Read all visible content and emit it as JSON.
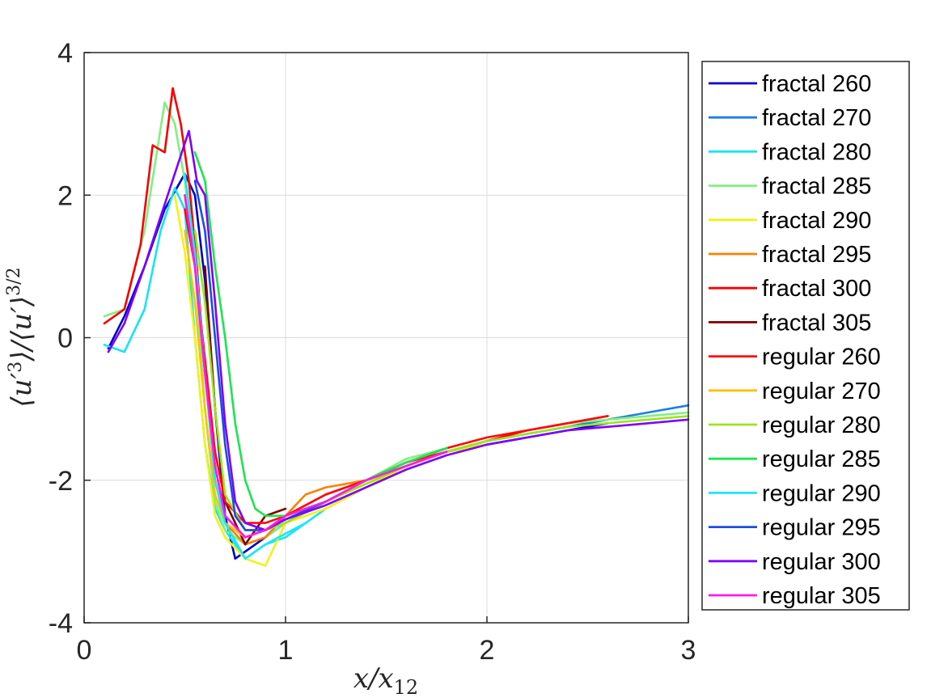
{
  "chart_data": {
    "type": "line",
    "title": "",
    "xlabel": "x/x_{12}",
    "ylabel": "⟨u'^3⟩/⟨u'⟩^{3/2}",
    "xlim": [
      0,
      3
    ],
    "ylim": [
      -4,
      4
    ],
    "xticks": [
      "0",
      "1",
      "2",
      "3"
    ],
    "yticks": [
      "4",
      "2",
      "0",
      "-2",
      "-4"
    ],
    "grid": true,
    "legend_position": "outside-right",
    "series": [
      {
        "name": "fractal 260",
        "color": "#0000CC",
        "points": [
          [
            0.12,
            -0.15
          ],
          [
            0.2,
            0.3
          ],
          [
            0.3,
            1.0
          ],
          [
            0.4,
            1.8
          ],
          [
            0.5,
            2.3
          ],
          [
            0.55,
            2.0
          ],
          [
            0.6,
            0.8
          ],
          [
            0.65,
            -1.0
          ],
          [
            0.7,
            -2.5
          ],
          [
            0.75,
            -3.1
          ],
          [
            0.8,
            -3.0
          ],
          [
            0.9,
            -2.8
          ],
          [
            1.0,
            -2.6
          ],
          [
            1.2,
            -2.3
          ],
          [
            1.4,
            -2.0
          ],
          [
            1.6,
            -1.8
          ],
          [
            1.8,
            -1.6
          ],
          [
            2.0,
            -1.5
          ],
          [
            2.2,
            -1.4
          ],
          [
            2.4,
            -1.3
          ],
          [
            2.6,
            -1.2
          ]
        ]
      },
      {
        "name": "fractal 270",
        "color": "#1A7FE6",
        "points": [
          [
            1.0,
            -2.5
          ],
          [
            1.2,
            -2.3
          ],
          [
            1.4,
            -2.0
          ],
          [
            1.6,
            -1.8
          ],
          [
            1.8,
            -1.6
          ],
          [
            2.0,
            -1.45
          ],
          [
            2.2,
            -1.35
          ],
          [
            2.4,
            -1.25
          ],
          [
            2.6,
            -1.15
          ],
          [
            2.8,
            -1.05
          ],
          [
            3.0,
            -0.95
          ]
        ]
      },
      {
        "name": "fractal 280",
        "color": "#14E6F2",
        "points": [
          [
            0.1,
            -0.1
          ],
          [
            0.2,
            -0.2
          ],
          [
            0.3,
            0.4
          ],
          [
            0.38,
            1.5
          ],
          [
            0.45,
            2.1
          ],
          [
            0.5,
            1.8
          ],
          [
            0.55,
            0.0
          ],
          [
            0.6,
            -1.5
          ],
          [
            0.65,
            -2.4
          ],
          [
            0.7,
            -2.7
          ],
          [
            0.8,
            -3.1
          ],
          [
            0.9,
            -2.9
          ],
          [
            1.0,
            -2.8
          ],
          [
            1.2,
            -2.4
          ],
          [
            1.4,
            -2.1
          ],
          [
            1.6,
            -1.8
          ],
          [
            1.8,
            -1.6
          ],
          [
            2.0,
            -1.5
          ]
        ]
      },
      {
        "name": "fractal 285",
        "color": "#80F080",
        "points": [
          [
            0.1,
            0.3
          ],
          [
            0.2,
            0.4
          ],
          [
            0.3,
            1.5
          ],
          [
            0.35,
            2.4
          ],
          [
            0.4,
            3.3
          ],
          [
            0.45,
            3.0
          ],
          [
            0.5,
            2.2
          ],
          [
            0.55,
            1.0
          ],
          [
            0.6,
            -1.0
          ],
          [
            0.65,
            -2.3
          ],
          [
            0.7,
            -2.7
          ],
          [
            0.8,
            -2.9
          ],
          [
            0.9,
            -2.8
          ],
          [
            1.0,
            -2.6
          ],
          [
            1.2,
            -2.3
          ],
          [
            1.4,
            -2.0
          ],
          [
            1.6,
            -1.7
          ],
          [
            1.8,
            -1.55
          ],
          [
            2.0,
            -1.4
          ],
          [
            2.2,
            -1.3
          ],
          [
            2.4,
            -1.2
          ],
          [
            2.6,
            -1.15
          ],
          [
            2.8,
            -1.1
          ],
          [
            3.0,
            -1.05
          ]
        ]
      },
      {
        "name": "fractal 290",
        "color": "#F2F21A",
        "points": [
          [
            0.45,
            2.0
          ],
          [
            0.5,
            1.2
          ],
          [
            0.55,
            0.0
          ],
          [
            0.6,
            -1.5
          ],
          [
            0.65,
            -2.5
          ],
          [
            0.7,
            -2.8
          ],
          [
            0.8,
            -3.1
          ],
          [
            0.9,
            -3.2
          ],
          [
            0.95,
            -2.9
          ],
          [
            1.0,
            -2.6
          ],
          [
            1.2,
            -2.4
          ],
          [
            1.4,
            -2.1
          ],
          [
            1.6,
            -1.8
          ],
          [
            1.8,
            -1.6
          ],
          [
            2.0,
            -1.5
          ]
        ]
      },
      {
        "name": "fractal 295",
        "color": "#FF8000",
        "points": [
          [
            0.5,
            2.0
          ],
          [
            0.55,
            1.0
          ],
          [
            0.6,
            -0.5
          ],
          [
            0.65,
            -2.0
          ],
          [
            0.7,
            -2.6
          ],
          [
            0.8,
            -2.9
          ],
          [
            0.9,
            -2.8
          ],
          [
            1.0,
            -2.5
          ],
          [
            1.1,
            -2.2
          ],
          [
            1.2,
            -2.1
          ],
          [
            1.4,
            -2.0
          ],
          [
            1.6,
            -1.8
          ],
          [
            1.8,
            -1.6
          ]
        ]
      },
      {
        "name": "fractal 300",
        "color": "#FF0000",
        "points": [
          [
            0.1,
            0.2
          ],
          [
            0.2,
            0.4
          ],
          [
            0.28,
            1.3
          ],
          [
            0.34,
            2.7
          ],
          [
            0.4,
            2.6
          ],
          [
            0.44,
            3.5
          ],
          [
            0.48,
            3.0
          ],
          [
            0.52,
            2.2
          ],
          [
            0.56,
            1.0
          ],
          [
            0.6,
            -0.5
          ],
          [
            0.65,
            -1.8
          ],
          [
            0.7,
            -2.5
          ],
          [
            0.8,
            -2.8
          ],
          [
            0.9,
            -2.7
          ],
          [
            1.0,
            -2.5
          ],
          [
            1.2,
            -2.2
          ],
          [
            1.4,
            -2.0
          ],
          [
            1.6,
            -1.75
          ],
          [
            1.8,
            -1.6
          ],
          [
            2.0,
            -1.45
          ],
          [
            2.2,
            -1.3
          ],
          [
            2.4,
            -1.2
          ],
          [
            2.6,
            -1.1
          ]
        ]
      },
      {
        "name": "fractal 305",
        "color": "#800000",
        "points": [
          [
            0.6,
            1.0
          ],
          [
            0.65,
            -1.0
          ],
          [
            0.7,
            -2.3
          ],
          [
            0.75,
            -2.6
          ],
          [
            0.8,
            -2.9
          ],
          [
            0.85,
            -2.7
          ],
          [
            0.9,
            -2.5
          ],
          [
            1.0,
            -2.4
          ]
        ]
      },
      {
        "name": "regular 260",
        "color": "#FF0A0A",
        "points": [
          [
            0.5,
            1.8
          ],
          [
            0.55,
            1.0
          ],
          [
            0.6,
            -0.3
          ],
          [
            0.65,
            -1.6
          ],
          [
            0.7,
            -2.3
          ],
          [
            0.8,
            -2.6
          ],
          [
            0.9,
            -2.6
          ],
          [
            1.0,
            -2.5
          ],
          [
            1.2,
            -2.2
          ],
          [
            1.4,
            -2.0
          ],
          [
            1.6,
            -1.75
          ],
          [
            1.8,
            -1.55
          ],
          [
            2.0,
            -1.4
          ],
          [
            2.2,
            -1.3
          ],
          [
            2.4,
            -1.2
          ],
          [
            2.6,
            -1.1
          ]
        ]
      },
      {
        "name": "regular 270",
        "color": "#FFC000",
        "points": [
          [
            0.5,
            1.5
          ],
          [
            0.55,
            0.5
          ],
          [
            0.6,
            -1.0
          ],
          [
            0.65,
            -2.2
          ],
          [
            0.7,
            -2.6
          ],
          [
            0.8,
            -2.8
          ],
          [
            0.9,
            -2.7
          ],
          [
            1.0,
            -2.55
          ],
          [
            1.2,
            -2.3
          ],
          [
            1.4,
            -2.05
          ],
          [
            1.6,
            -1.8
          ],
          [
            1.8,
            -1.6
          ],
          [
            2.0,
            -1.45
          ]
        ]
      },
      {
        "name": "regular 280",
        "color": "#9AE61A",
        "points": [
          [
            0.55,
            1.5
          ],
          [
            0.6,
            0.5
          ],
          [
            0.65,
            -1.0
          ],
          [
            0.7,
            -2.2
          ],
          [
            0.8,
            -2.7
          ],
          [
            0.9,
            -2.7
          ],
          [
            1.0,
            -2.6
          ],
          [
            1.2,
            -2.3
          ],
          [
            1.4,
            -2.05
          ],
          [
            1.6,
            -1.8
          ],
          [
            1.8,
            -1.6
          ],
          [
            2.0,
            -1.45
          ],
          [
            2.2,
            -1.35
          ],
          [
            2.4,
            -1.25
          ],
          [
            2.6,
            -1.2
          ],
          [
            2.8,
            -1.15
          ],
          [
            3.0,
            -1.1
          ]
        ]
      },
      {
        "name": "regular 285",
        "color": "#1AE64D",
        "points": [
          [
            0.55,
            2.6
          ],
          [
            0.6,
            2.2
          ],
          [
            0.65,
            1.0
          ],
          [
            0.7,
            0.0
          ],
          [
            0.75,
            -1.2
          ],
          [
            0.8,
            -2.0
          ],
          [
            0.85,
            -2.4
          ],
          [
            0.9,
            -2.5
          ],
          [
            1.0,
            -2.5
          ],
          [
            1.2,
            -2.3
          ],
          [
            1.4,
            -2.0
          ],
          [
            1.6,
            -1.75
          ],
          [
            1.8,
            -1.55
          ]
        ]
      },
      {
        "name": "regular 290",
        "color": "#1AE6FF",
        "points": [
          [
            0.5,
            2.3
          ],
          [
            0.55,
            1.2
          ],
          [
            0.6,
            -0.5
          ],
          [
            0.65,
            -2.0
          ],
          [
            0.7,
            -2.6
          ],
          [
            0.8,
            -3.1
          ],
          [
            0.9,
            -2.9
          ],
          [
            1.0,
            -2.75
          ],
          [
            1.1,
            -2.6
          ]
        ]
      },
      {
        "name": "regular 295",
        "color": "#1A4DE6",
        "points": [
          [
            0.55,
            2.2
          ],
          [
            0.6,
            1.5
          ],
          [
            0.65,
            0.0
          ],
          [
            0.7,
            -1.5
          ],
          [
            0.75,
            -2.5
          ],
          [
            0.8,
            -2.7
          ],
          [
            0.9,
            -2.7
          ],
          [
            1.0,
            -2.55
          ],
          [
            1.2,
            -2.3
          ]
        ]
      },
      {
        "name": "regular 300",
        "color": "#8000FF",
        "points": [
          [
            0.12,
            -0.2
          ],
          [
            0.2,
            0.2
          ],
          [
            0.3,
            1.0
          ],
          [
            0.38,
            1.7
          ],
          [
            0.45,
            2.3
          ],
          [
            0.52,
            2.9
          ],
          [
            0.56,
            2.2
          ],
          [
            0.6,
            2.0
          ],
          [
            0.65,
            0.5
          ],
          [
            0.7,
            -1.2
          ],
          [
            0.75,
            -2.3
          ],
          [
            0.8,
            -2.6
          ],
          [
            0.9,
            -2.7
          ],
          [
            1.0,
            -2.55
          ],
          [
            1.2,
            -2.35
          ],
          [
            1.4,
            -2.1
          ],
          [
            1.6,
            -1.85
          ],
          [
            1.8,
            -1.65
          ],
          [
            2.0,
            -1.5
          ],
          [
            2.2,
            -1.4
          ],
          [
            2.4,
            -1.3
          ],
          [
            2.6,
            -1.25
          ],
          [
            2.8,
            -1.2
          ],
          [
            3.0,
            -1.15
          ]
        ]
      },
      {
        "name": "regular 305",
        "color": "#FF1AE6",
        "points": [
          [
            0.5,
            2.0
          ],
          [
            0.55,
            1.0
          ],
          [
            0.6,
            -0.5
          ],
          [
            0.65,
            -1.8
          ],
          [
            0.7,
            -2.5
          ],
          [
            0.8,
            -2.8
          ],
          [
            0.9,
            -2.7
          ],
          [
            1.0,
            -2.5
          ],
          [
            1.2,
            -2.3
          ],
          [
            1.4,
            -2.0
          ],
          [
            1.6,
            -1.8
          ],
          [
            1.8,
            -1.6
          ]
        ]
      }
    ]
  }
}
